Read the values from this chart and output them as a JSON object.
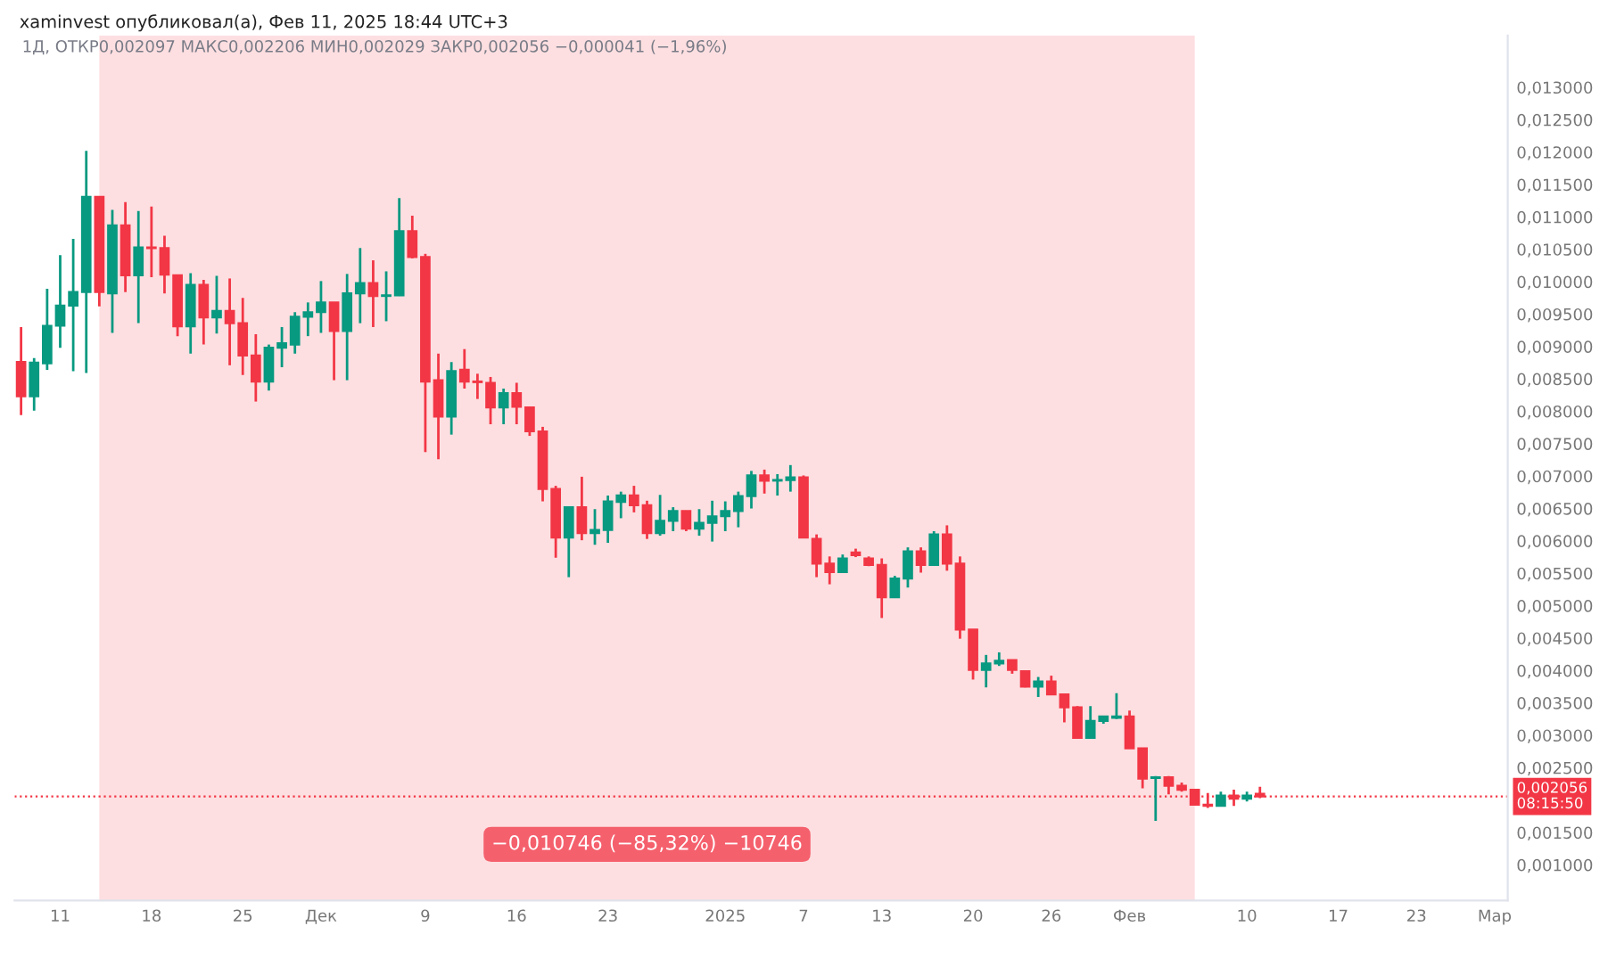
{
  "chart_data": {
    "type": "candlestick",
    "title": "xaminvest опубликовал(а), Фев 11, 2025 18:44 UTC+3",
    "subtitle": "1Д, ОТКР0,002097 МАКС0,002206 МИН0,002029 ЗАКР0,002056 −0,000041 (−1,96%)",
    "x": [
      "2024-11-08",
      "2024-11-09",
      "2024-11-10",
      "2024-11-11",
      "2024-11-12",
      "2024-11-13",
      "2024-11-14",
      "2024-11-15",
      "2024-11-16",
      "2024-11-17",
      "2024-11-18",
      "2024-11-19",
      "2024-11-20",
      "2024-11-21",
      "2024-11-22",
      "2024-11-23",
      "2024-11-24",
      "2024-11-25",
      "2024-11-26",
      "2024-11-27",
      "2024-11-28",
      "2024-11-29",
      "2024-11-30",
      "2024-12-01",
      "2024-12-02",
      "2024-12-03",
      "2024-12-04",
      "2024-12-05",
      "2024-12-06",
      "2024-12-07",
      "2024-12-08",
      "2024-12-09",
      "2024-12-10",
      "2024-12-11",
      "2024-12-12",
      "2024-12-13",
      "2024-12-14",
      "2024-12-15",
      "2024-12-16",
      "2024-12-17",
      "2024-12-18",
      "2024-12-19",
      "2024-12-20",
      "2024-12-21",
      "2024-12-22",
      "2024-12-23",
      "2024-12-24",
      "2024-12-25",
      "2024-12-26",
      "2024-12-27",
      "2024-12-28",
      "2024-12-29",
      "2024-12-30",
      "2024-12-31",
      "2025-01-01",
      "2025-01-02",
      "2025-01-03",
      "2025-01-04",
      "2025-01-05",
      "2025-01-06",
      "2025-01-07",
      "2025-01-08",
      "2025-01-09",
      "2025-01-10",
      "2025-01-11",
      "2025-01-12",
      "2025-01-13",
      "2025-01-14",
      "2025-01-15",
      "2025-01-16",
      "2025-01-17",
      "2025-01-18",
      "2025-01-19",
      "2025-01-20",
      "2025-01-21",
      "2025-01-22",
      "2025-01-23",
      "2025-01-24",
      "2025-01-25",
      "2025-01-26",
      "2025-01-27",
      "2025-01-28",
      "2025-01-29",
      "2025-01-30",
      "2025-01-31",
      "2025-02-01",
      "2025-02-02",
      "2025-02-03",
      "2025-02-04",
      "2025-02-05",
      "2025-02-06",
      "2025-02-07",
      "2025-02-08",
      "2025-02-09",
      "2025-02-10",
      "2025-02-11"
    ],
    "ohlc": [
      [
        0.00876,
        0.0093,
        0.00794,
        0.00823
      ],
      [
        0.00823,
        0.00882,
        0.00801,
        0.00875
      ],
      [
        0.00874,
        0.00989,
        0.00864,
        0.00932
      ],
      [
        0.00932,
        0.01041,
        0.00898,
        0.00963
      ],
      [
        0.00963,
        0.01066,
        0.00862,
        0.00984
      ],
      [
        0.00984,
        0.01202,
        0.00859,
        0.01131
      ],
      [
        0.01131,
        0.01131,
        0.00962,
        0.00984
      ],
      [
        0.00982,
        0.01111,
        0.00921,
        0.01087
      ],
      [
        0.01087,
        0.01123,
        0.00984,
        0.0101
      ],
      [
        0.0101,
        0.01109,
        0.00936,
        0.01053
      ],
      [
        0.01053,
        0.01116,
        0.01007,
        0.01052
      ],
      [
        0.01052,
        0.01071,
        0.00982,
        0.01011
      ],
      [
        0.0101,
        0.0101,
        0.00916,
        0.00931
      ],
      [
        0.00931,
        0.01013,
        0.00889,
        0.00995
      ],
      [
        0.00995,
        0.01003,
        0.00903,
        0.00945
      ],
      [
        0.00945,
        0.01009,
        0.0092,
        0.00955
      ],
      [
        0.00955,
        0.01005,
        0.00871,
        0.00936
      ],
      [
        0.00936,
        0.00975,
        0.00856,
        0.00886
      ],
      [
        0.00886,
        0.00919,
        0.00815,
        0.00846
      ],
      [
        0.00846,
        0.00903,
        0.00832,
        0.00898
      ],
      [
        0.00898,
        0.0093,
        0.00868,
        0.00905
      ],
      [
        0.00903,
        0.00953,
        0.00889,
        0.00946
      ],
      [
        0.00946,
        0.00968,
        0.00916,
        0.00953
      ],
      [
        0.00953,
        0.01001,
        0.00921,
        0.00968
      ],
      [
        0.00968,
        0.00968,
        0.00848,
        0.00924
      ],
      [
        0.00924,
        0.01012,
        0.00848,
        0.00982
      ],
      [
        0.00982,
        0.01052,
        0.00936,
        0.00998
      ],
      [
        0.00998,
        0.01033,
        0.0093,
        0.00978
      ],
      [
        0.00978,
        0.01016,
        0.00939,
        0.00979
      ],
      [
        0.00979,
        0.01129,
        0.00978,
        0.01078
      ],
      [
        0.01078,
        0.01102,
        0.01036,
        0.01038
      ],
      [
        0.01038,
        0.01043,
        0.00737,
        0.00846
      ],
      [
        0.00848,
        0.00889,
        0.00726,
        0.00792
      ],
      [
        0.00792,
        0.00876,
        0.00764,
        0.00862
      ],
      [
        0.00864,
        0.00896,
        0.00835,
        0.00846
      ],
      [
        0.00846,
        0.00858,
        0.00819,
        0.00845
      ],
      [
        0.00844,
        0.00853,
        0.0078,
        0.00806
      ],
      [
        0.00806,
        0.00835,
        0.0078,
        0.00828
      ],
      [
        0.00828,
        0.00844,
        0.0078,
        0.00807
      ],
      [
        0.00806,
        0.00806,
        0.00762,
        0.00769
      ],
      [
        0.00769,
        0.00776,
        0.00661,
        0.0068
      ],
      [
        0.0068,
        0.00685,
        0.00574,
        0.00605
      ],
      [
        0.00605,
        0.00652,
        0.00544,
        0.00652
      ],
      [
        0.00652,
        0.00699,
        0.00601,
        0.00612
      ],
      [
        0.00612,
        0.00649,
        0.00594,
        0.00617
      ],
      [
        0.00617,
        0.0067,
        0.00597,
        0.00661
      ],
      [
        0.0066,
        0.00676,
        0.00635,
        0.0067
      ],
      [
        0.0067,
        0.00685,
        0.00644,
        0.00655
      ],
      [
        0.00655,
        0.00662,
        0.00603,
        0.00612
      ],
      [
        0.00612,
        0.00671,
        0.00608,
        0.00631
      ],
      [
        0.00631,
        0.00652,
        0.00615,
        0.00646
      ],
      [
        0.00646,
        0.00646,
        0.00615,
        0.00619
      ],
      [
        0.00619,
        0.00649,
        0.00608,
        0.00628
      ],
      [
        0.00628,
        0.00662,
        0.00599,
        0.00638
      ],
      [
        0.00638,
        0.00661,
        0.00615,
        0.00646
      ],
      [
        0.00646,
        0.00676,
        0.00621,
        0.00669
      ],
      [
        0.00669,
        0.00708,
        0.0065,
        0.00701
      ],
      [
        0.00701,
        0.0071,
        0.00673,
        0.00693
      ],
      [
        0.00693,
        0.00703,
        0.0067,
        0.00694
      ],
      [
        0.00694,
        0.00717,
        0.00676,
        0.00698
      ],
      [
        0.00698,
        0.00701,
        0.00605,
        0.00605
      ],
      [
        0.00603,
        0.0061,
        0.00544,
        0.00565
      ],
      [
        0.00565,
        0.00576,
        0.00533,
        0.00552
      ],
      [
        0.00552,
        0.00579,
        0.00552,
        0.00573
      ],
      [
        0.00582,
        0.00588,
        0.00575,
        0.00578
      ],
      [
        0.00573,
        0.00576,
        0.00561,
        0.00563
      ],
      [
        0.00563,
        0.00573,
        0.00481,
        0.00513
      ],
      [
        0.00513,
        0.00546,
        0.00513,
        0.00542
      ],
      [
        0.00542,
        0.0059,
        0.00528,
        0.00584
      ],
      [
        0.00584,
        0.0059,
        0.00551,
        0.00563
      ],
      [
        0.00563,
        0.00615,
        0.00563,
        0.0061
      ],
      [
        0.0061,
        0.00624,
        0.00554,
        0.00565
      ],
      [
        0.00565,
        0.00576,
        0.00449,
        0.00463
      ],
      [
        0.00463,
        0.00463,
        0.00386,
        0.00401
      ],
      [
        0.00401,
        0.00424,
        0.00374,
        0.00411
      ],
      [
        0.00411,
        0.00428,
        0.00407,
        0.00415
      ],
      [
        0.00416,
        0.00416,
        0.00395,
        0.00401
      ],
      [
        0.00399,
        0.004,
        0.00374,
        0.00375
      ],
      [
        0.00375,
        0.0039,
        0.00359,
        0.00383
      ],
      [
        0.00383,
        0.00392,
        0.00363,
        0.00363
      ],
      [
        0.00363,
        0.00363,
        0.0032,
        0.00343
      ],
      [
        0.00343,
        0.00345,
        0.00296,
        0.00296
      ],
      [
        0.00296,
        0.00345,
        0.00296,
        0.00322
      ],
      [
        0.00322,
        0.0033,
        0.00318,
        0.00329
      ],
      [
        0.00327,
        0.00365,
        0.00325,
        0.00329
      ],
      [
        0.00329,
        0.00338,
        0.0028,
        0.0028
      ],
      [
        0.0028,
        0.0028,
        0.00218,
        0.00233
      ],
      [
        0.00234,
        0.00237,
        0.00168,
        0.00235
      ],
      [
        0.00235,
        0.00237,
        0.00209,
        0.00222
      ],
      [
        0.00222,
        0.00227,
        0.00213,
        0.00216
      ],
      [
        0.00216,
        0.00216,
        0.00193,
        0.00193
      ],
      [
        0.00193,
        0.00211,
        0.00188,
        0.00191
      ],
      [
        0.00191,
        0.00213,
        0.00191,
        0.00207
      ],
      [
        0.00207,
        0.00216,
        0.00191,
        0.00202
      ],
      [
        0.00202,
        0.00213,
        0.00198,
        0.00207
      ],
      [
        0.002097,
        0.002206,
        0.002029,
        0.002056
      ]
    ],
    "xlim": [
      "2024-11-07T12:00",
      "2025-03-02"
    ],
    "xticks": [
      {
        "value": "2024-11-11",
        "label": "11"
      },
      {
        "value": "2024-11-18",
        "label": "18"
      },
      {
        "value": "2024-11-25",
        "label": "25"
      },
      {
        "value": "2024-12-01",
        "label": "Дек"
      },
      {
        "value": "2024-12-09",
        "label": "9"
      },
      {
        "value": "2024-12-16",
        "label": "16"
      },
      {
        "value": "2024-12-23",
        "label": "23"
      },
      {
        "value": "2025-01-01",
        "label": "2025"
      },
      {
        "value": "2025-01-07",
        "label": "7"
      },
      {
        "value": "2025-01-13",
        "label": "13"
      },
      {
        "value": "2025-01-20",
        "label": "20"
      },
      {
        "value": "2025-01-26",
        "label": "26"
      },
      {
        "value": "2025-02-01",
        "label": "Фев"
      },
      {
        "value": "2025-02-10",
        "label": "10"
      },
      {
        "value": "2025-02-17",
        "label": "17"
      },
      {
        "value": "2025-02-23",
        "label": "23"
      },
      {
        "value": "2025-03-01",
        "label": "Мар"
      }
    ],
    "ylim": [
      0.00045,
      0.0138
    ],
    "yticks": [
      {
        "value": 0.001,
        "label": "0,001000"
      },
      {
        "value": 0.0015,
        "label": "0,001500"
      },
      {
        "value": 0.0025,
        "label": "0,002500"
      },
      {
        "value": 0.003,
        "label": "0,003000"
      },
      {
        "value": 0.0035,
        "label": "0,003500"
      },
      {
        "value": 0.004,
        "label": "0,004000"
      },
      {
        "value": 0.0045,
        "label": "0,004500"
      },
      {
        "value": 0.005,
        "label": "0,005000"
      },
      {
        "value": 0.0055,
        "label": "0,005500"
      },
      {
        "value": 0.006,
        "label": "0,006000"
      },
      {
        "value": 0.0065,
        "label": "0,006500"
      },
      {
        "value": 0.007,
        "label": "0,007000"
      },
      {
        "value": 0.0075,
        "label": "0,007500"
      },
      {
        "value": 0.008,
        "label": "0,008000"
      },
      {
        "value": 0.0085,
        "label": "0,008500"
      },
      {
        "value": 0.009,
        "label": "0,009000"
      },
      {
        "value": 0.0095,
        "label": "0,009500"
      },
      {
        "value": 0.01,
        "label": "0,010000"
      },
      {
        "value": 0.0105,
        "label": "0,010500"
      },
      {
        "value": 0.011,
        "label": "0,011000"
      },
      {
        "value": 0.0115,
        "label": "0,011500"
      },
      {
        "value": 0.012,
        "label": "0,012000"
      },
      {
        "value": 0.0125,
        "label": "0,012500"
      },
      {
        "value": 0.013,
        "label": "0,013000"
      }
    ],
    "bands": [
      {
        "axis": "x",
        "from": "2024-11-14",
        "to": "2025-02-06",
        "label": "−0,010746 (−85,32%) −10746",
        "color": "#f23645"
      }
    ],
    "ref_lines": [
      {
        "axis": "y",
        "value": 0.002056,
        "label": "0,002056\n08:15:50",
        "color": "#f23645",
        "line_style": "dotted"
      }
    ],
    "grid": false,
    "legend": false
  }
}
